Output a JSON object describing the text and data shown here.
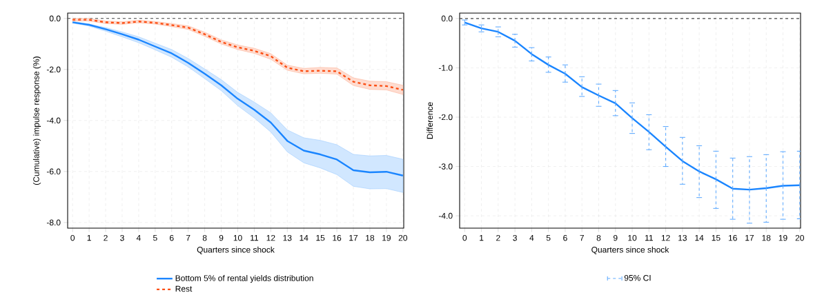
{
  "chart_data": [
    {
      "type": "line",
      "xlabel": "Quarters since shock",
      "ylabel": "(Cumulative) impulse response (%)",
      "x": [
        0,
        1,
        2,
        3,
        4,
        5,
        6,
        7,
        8,
        9,
        10,
        11,
        12,
        13,
        14,
        15,
        16,
        17,
        18,
        19,
        20
      ],
      "xlim": [
        -0.3,
        20.05
      ],
      "ylim": [
        -8.22,
        0.21
      ],
      "xticks": [
        0,
        1,
        2,
        3,
        4,
        5,
        6,
        7,
        8,
        9,
        10,
        11,
        12,
        13,
        14,
        15,
        16,
        17,
        18,
        19,
        20
      ],
      "yticks": [
        {
          "value": -8,
          "label": "-8.0"
        },
        {
          "value": -6,
          "label": "-6.0"
        },
        {
          "value": -4,
          "label": "-4.0"
        },
        {
          "value": -2,
          "label": "-2.0"
        },
        {
          "value": 0,
          "label": "0.0"
        }
      ],
      "grid": true,
      "legend": "bottom",
      "ref_lines": [
        {
          "axis": "y",
          "value": 0,
          "color": "#444444",
          "line_style": "dashed"
        }
      ],
      "series": [
        {
          "name": "Bottom 5% of rental yields distribution",
          "color": "#1a85ff",
          "line_style": "solid",
          "values": [
            -0.15,
            -0.25,
            -0.42,
            -0.62,
            -0.83,
            -1.1,
            -1.37,
            -1.74,
            -2.17,
            -2.62,
            -3.15,
            -3.58,
            -4.08,
            -4.8,
            -5.18,
            -5.33,
            -5.53,
            -5.95,
            -6.03,
            -6.01,
            -6.16
          ],
          "lower": [
            -0.18,
            -0.3,
            -0.5,
            -0.72,
            -0.95,
            -1.23,
            -1.52,
            -1.9,
            -2.36,
            -2.83,
            -3.42,
            -3.9,
            -4.45,
            -5.23,
            -5.66,
            -5.86,
            -6.12,
            -6.58,
            -6.68,
            -6.67,
            -6.82
          ],
          "upper": [
            -0.12,
            -0.22,
            -0.36,
            -0.53,
            -0.72,
            -0.97,
            -1.22,
            -1.57,
            -1.98,
            -2.4,
            -2.9,
            -3.28,
            -3.7,
            -4.37,
            -4.68,
            -4.78,
            -4.95,
            -5.33,
            -5.39,
            -5.37,
            -5.52
          ]
        },
        {
          "name": "Rest",
          "color": "#fc4f14",
          "line_style": "dashed",
          "values": [
            -0.05,
            -0.05,
            -0.15,
            -0.18,
            -0.12,
            -0.17,
            -0.26,
            -0.36,
            -0.62,
            -0.92,
            -1.13,
            -1.27,
            -1.48,
            -1.93,
            -2.07,
            -2.05,
            -2.07,
            -2.48,
            -2.62,
            -2.65,
            -2.8
          ],
          "lower": [
            -0.1,
            -0.1,
            -0.2,
            -0.23,
            -0.17,
            -0.22,
            -0.32,
            -0.43,
            -0.7,
            -1.0,
            -1.22,
            -1.37,
            -1.6,
            -2.03,
            -2.17,
            -2.15,
            -2.18,
            -2.63,
            -2.78,
            -2.8,
            -2.98
          ],
          "upper": [
            0.0,
            0.0,
            -0.1,
            -0.13,
            -0.07,
            -0.12,
            -0.2,
            -0.29,
            -0.54,
            -0.84,
            -1.04,
            -1.17,
            -1.38,
            -1.83,
            -1.96,
            -1.92,
            -1.94,
            -2.33,
            -2.46,
            -2.48,
            -2.62
          ]
        }
      ]
    },
    {
      "type": "line",
      "xlabel": "Quarters since shock",
      "ylabel": "Difference",
      "x": [
        0,
        1,
        2,
        3,
        4,
        5,
        6,
        7,
        8,
        9,
        10,
        11,
        12,
        13,
        14,
        15,
        16,
        17,
        18,
        19,
        20
      ],
      "xlim": [
        -0.3,
        20.05
      ],
      "ylim": [
        -4.25,
        0.11
      ],
      "xticks": [
        0,
        1,
        2,
        3,
        4,
        5,
        6,
        7,
        8,
        9,
        10,
        11,
        12,
        13,
        14,
        15,
        16,
        17,
        18,
        19,
        20
      ],
      "yticks": [
        {
          "value": -4,
          "label": "-4.0"
        },
        {
          "value": -3,
          "label": "-3.0"
        },
        {
          "value": -2,
          "label": "-2.0"
        },
        {
          "value": -1,
          "label": "-1.0"
        },
        {
          "value": 0,
          "label": "0.0"
        }
      ],
      "grid": true,
      "annotations": [
        "95% CI"
      ],
      "ref_lines": [
        {
          "axis": "y",
          "value": 0,
          "color": "#444444",
          "line_style": "dashed"
        }
      ],
      "series": [
        {
          "color": "#1a85ff",
          "line_style": "solid",
          "values": [
            -0.08,
            -0.2,
            -0.27,
            -0.45,
            -0.72,
            -0.94,
            -1.12,
            -1.39,
            -1.56,
            -1.72,
            -2.02,
            -2.3,
            -2.6,
            -2.89,
            -3.1,
            -3.26,
            -3.45,
            -3.47,
            -3.44,
            -3.39,
            -3.38
          ],
          "errors": [
            [
              -0.13,
              -0.03
            ],
            [
              -0.27,
              -0.13
            ],
            [
              -0.37,
              -0.17
            ],
            [
              -0.58,
              -0.32
            ],
            [
              -0.86,
              -0.59
            ],
            [
              -1.09,
              -0.78
            ],
            [
              -1.29,
              -0.94
            ],
            [
              -1.58,
              -1.18
            ],
            [
              -1.78,
              -1.33
            ],
            [
              -1.97,
              -1.46
            ],
            [
              -2.33,
              -1.71
            ],
            [
              -2.66,
              -1.95
            ],
            [
              -3.0,
              -2.19
            ],
            [
              -3.36,
              -2.41
            ],
            [
              -3.63,
              -2.58
            ],
            [
              -3.85,
              -2.69
            ],
            [
              -4.07,
              -2.83
            ],
            [
              -4.15,
              -2.8
            ],
            [
              -4.13,
              -2.76
            ],
            [
              -4.07,
              -2.7
            ],
            [
              -4.06,
              -2.69
            ]
          ]
        }
      ]
    }
  ]
}
